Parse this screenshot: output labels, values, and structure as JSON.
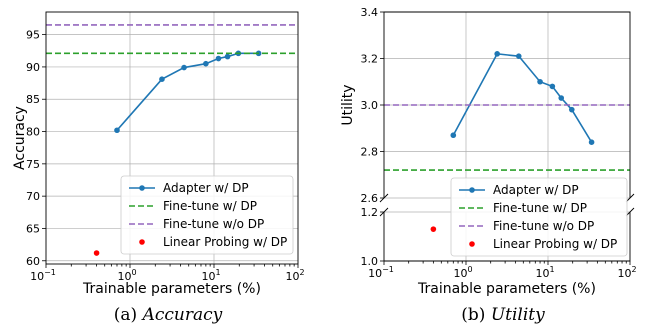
{
  "chart_data": [
    {
      "type": "line",
      "caption_prefix": "(a) ",
      "caption_label": "Accuracy",
      "xlabel": "Trainable parameters (%)",
      "ylabel": "Accuracy",
      "xscale": "log",
      "xlim": [
        0.1,
        100
      ],
      "ylim": [
        59.5,
        98.5
      ],
      "grid": true,
      "legend_position": "lower-right",
      "xticks": [
        {
          "value": 0.1,
          "base": "10",
          "exp": "−1"
        },
        {
          "value": 1,
          "base": "10",
          "exp": "0"
        },
        {
          "value": 10,
          "base": "10",
          "exp": "1"
        },
        {
          "value": 100,
          "base": "10",
          "exp": "2"
        }
      ],
      "yticks": [
        {
          "value": 60,
          "label": "60"
        },
        {
          "value": 65,
          "label": "65"
        },
        {
          "value": 70,
          "label": "70"
        },
        {
          "value": 75,
          "label": "75"
        },
        {
          "value": 80,
          "label": "80"
        },
        {
          "value": 85,
          "label": "85"
        },
        {
          "value": 90,
          "label": "90"
        },
        {
          "value": 95,
          "label": "95"
        }
      ],
      "series": [
        {
          "name": "Adapter w/ DP",
          "kind": "line-marker",
          "color": "#1f77b4",
          "x": [
            0.7,
            2.4,
            4.4,
            8.0,
            11.3,
            14.5,
            19.5,
            34.0
          ],
          "y": [
            80.2,
            88.1,
            89.9,
            90.5,
            91.3,
            91.6,
            92.1,
            92.1
          ]
        },
        {
          "name": "Fine-tune w/ DP",
          "kind": "hline",
          "color": "#2ca02c",
          "y": 92.1
        },
        {
          "name": "Fine-tune w/o DP",
          "kind": "hline",
          "color": "#9467bd",
          "y": 96.5
        },
        {
          "name": "Linear Probing w/ DP",
          "kind": "point",
          "color": "#ff0000",
          "x": [
            0.4
          ],
          "y": [
            61.2
          ]
        }
      ]
    },
    {
      "type": "line",
      "caption_prefix": "(b) ",
      "caption_label": "Utility",
      "xlabel": "Trainable parameters (%)",
      "ylabel": "Utility",
      "xscale": "log",
      "xlim": [
        0.1,
        100
      ],
      "broken_yaxis": true,
      "top_panel_ylim": [
        2.6,
        3.4
      ],
      "bottom_panel_ylim": [
        1.0,
        1.2
      ],
      "grid": true,
      "legend_position": "lower-right",
      "xticks": [
        {
          "value": 0.1,
          "base": "10",
          "exp": "−1"
        },
        {
          "value": 1,
          "base": "10",
          "exp": "0"
        },
        {
          "value": 10,
          "base": "10",
          "exp": "1"
        },
        {
          "value": 100,
          "base": "10",
          "exp": "2"
        }
      ],
      "top_yticks": [
        {
          "value": 2.6,
          "label": "2.6"
        },
        {
          "value": 2.8,
          "label": "2.8"
        },
        {
          "value": 3.0,
          "label": "3.0"
        },
        {
          "value": 3.2,
          "label": "3.2"
        },
        {
          "value": 3.4,
          "label": "3.4"
        }
      ],
      "bottom_yticks": [
        {
          "value": 1.0,
          "label": "1.0"
        },
        {
          "value": 1.2,
          "label": "1.2"
        }
      ],
      "series": [
        {
          "name": "Adapter w/ DP",
          "kind": "line-marker",
          "color": "#1f77b4",
          "x": [
            0.7,
            2.4,
            4.4,
            8.0,
            11.3,
            14.5,
            19.5,
            34.0
          ],
          "y": [
            2.87,
            3.22,
            3.21,
            3.1,
            3.08,
            3.03,
            2.98,
            2.84
          ]
        },
        {
          "name": "Fine-tune w/ DP",
          "kind": "hline",
          "color": "#2ca02c",
          "y": 2.72
        },
        {
          "name": "Fine-tune w/o DP",
          "kind": "hline",
          "color": "#9467bd",
          "y": 3.0
        },
        {
          "name": "Linear Probing w/ DP",
          "kind": "point",
          "color": "#ff0000",
          "x": [
            0.4
          ],
          "y": [
            1.13
          ]
        }
      ]
    }
  ]
}
